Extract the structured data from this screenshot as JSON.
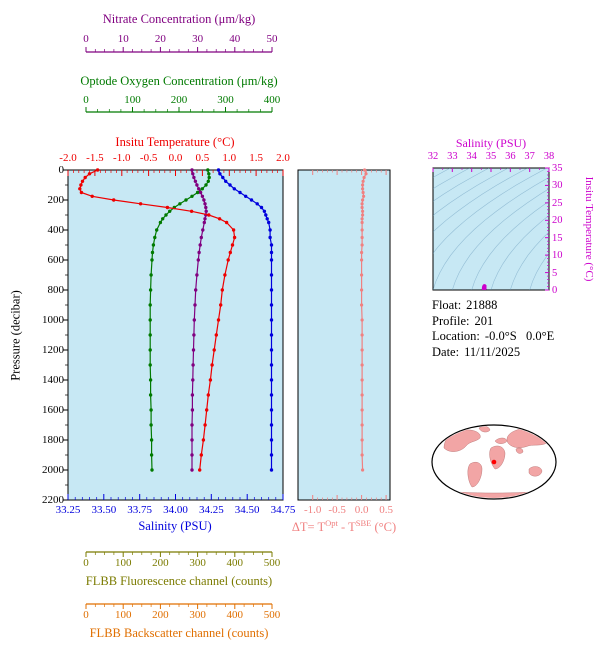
{
  "colors": {
    "nitrate": "#800080",
    "oxygen": "#007A00",
    "temperature": "#EE0000",
    "salinity": "#0000DD",
    "fluorescence": "#7B7B00",
    "backscatter": "#E06F00",
    "delta_t": "#F08080",
    "ts": "#CC00CC",
    "plot_bg": "#C7E8F4",
    "land": "#F2A5A5",
    "marker": "#FF0000"
  },
  "axes": {
    "nitrate": {
      "label": "Nitrate Concentration (μm/kg)",
      "tick_labels": [
        "0",
        "10",
        "20",
        "30",
        "40",
        "50"
      ],
      "range": [
        0,
        50
      ]
    },
    "oxygen": {
      "label": "Optode Oxygen Concentration (μm/kg)",
      "tick_labels": [
        "0",
        "100",
        "200",
        "300",
        "400"
      ],
      "range": [
        0,
        400
      ]
    },
    "temperature": {
      "label": "Insitu Temperature (°C)",
      "tick_labels": [
        "-2.0",
        "-1.5",
        "-1.0",
        "-0.5",
        "0.0",
        "0.5",
        "1.0",
        "1.5",
        "2.0"
      ],
      "range": [
        -2,
        2
      ]
    },
    "pressure": {
      "label": "Pressure (decibar)",
      "tick_labels": [
        "0",
        "200",
        "400",
        "600",
        "800",
        "1000",
        "1200",
        "1400",
        "1600",
        "1800",
        "2000",
        "2200"
      ],
      "range": [
        0,
        2200
      ]
    },
    "salinity": {
      "label": "Salinity (PSU)",
      "tick_labels": [
        "33.25",
        "33.50",
        "33.75",
        "34.00",
        "34.25",
        "34.50",
        "34.75"
      ],
      "range": [
        33.25,
        34.75
      ]
    },
    "delta_t": {
      "label_prefix": "ΔT= T",
      "label_sup1": "Opt",
      "label_mid": " - T",
      "label_sup2": "SBE",
      "label_suffix": " (°C)",
      "tick_labels": [
        "-1.0",
        "-0.5",
        "0.0",
        "0.5"
      ],
      "range": [
        -1.3,
        0.58
      ]
    },
    "fluorescence": {
      "label": "FLBB Fluorescence channel (counts)",
      "tick_labels": [
        "0",
        "100",
        "200",
        "300",
        "400",
        "500"
      ],
      "range": [
        0,
        500
      ]
    },
    "backscatter": {
      "label": "FLBB Backscatter channel (counts)",
      "tick_labels": [
        "0",
        "100",
        "200",
        "300",
        "400",
        "500"
      ],
      "range": [
        0,
        500
      ]
    },
    "ts_salinity": {
      "label": "Salinity (PSU)",
      "tick_labels": [
        "32",
        "33",
        "34",
        "35",
        "36",
        "37",
        "38"
      ],
      "range": [
        32,
        38
      ]
    },
    "ts_temperature": {
      "label": "Insitu Temperature (°C)",
      "tick_labels": [
        "0",
        "5",
        "10",
        "15",
        "20",
        "25",
        "30",
        "35"
      ],
      "range": [
        0,
        35
      ]
    }
  },
  "info": {
    "rows": [
      {
        "label": "Float:",
        "value": "21888"
      },
      {
        "label": "Profile:",
        "value": "201"
      },
      {
        "label": "Location:",
        "value": "-0.0°S   0.0°E"
      },
      {
        "label": "Date:",
        "value": "11/11/2025"
      }
    ]
  },
  "chart_data": [
    {
      "type": "line",
      "title": "Float vertical profiles",
      "ylabel": "Pressure (decibar)",
      "ylim": [
        0,
        2200
      ],
      "y_axis_inverted": true,
      "grid": false,
      "pressure": [
        0,
        25,
        50,
        75,
        100,
        125,
        150,
        175,
        200,
        225,
        250,
        275,
        300,
        325,
        350,
        400,
        450,
        500,
        550,
        600,
        700,
        800,
        900,
        1000,
        1100,
        1200,
        1300,
        1400,
        1500,
        1600,
        1700,
        1800,
        1900,
        2000
      ],
      "series": [
        {
          "name": "Insitu Temperature (°C)",
          "color": "#EE0000",
          "axis_range": [
            -2,
            2
          ],
          "values": [
            -1.45,
            -1.6,
            -1.68,
            -1.73,
            -1.76,
            -1.78,
            -1.75,
            -1.55,
            -1.15,
            -0.65,
            -0.15,
            0.3,
            0.62,
            0.82,
            0.95,
            1.08,
            1.1,
            1.06,
            1.02,
            0.98,
            0.92,
            0.87,
            0.84,
            0.8,
            0.76,
            0.72,
            0.68,
            0.65,
            0.61,
            0.58,
            0.55,
            0.52,
            0.48,
            0.45
          ]
        },
        {
          "name": "Salinity (PSU)",
          "color": "#0000DD",
          "axis_range": [
            33.25,
            34.75
          ],
          "values": [
            34.3,
            34.31,
            34.33,
            34.35,
            34.38,
            34.41,
            34.45,
            34.49,
            34.53,
            34.57,
            34.6,
            34.62,
            34.63,
            34.64,
            34.65,
            34.66,
            34.66,
            34.67,
            34.67,
            34.67,
            34.67,
            34.67,
            34.67,
            34.67,
            34.67,
            34.67,
            34.67,
            34.67,
            34.67,
            34.67,
            34.67,
            34.67,
            34.67,
            34.67
          ]
        },
        {
          "name": "Optode Oxygen Concentration (μm/kg)",
          "color": "#007A00",
          "axis_range": [
            0,
            400
          ],
          "values": [
            262,
            264,
            265,
            263,
            258,
            250,
            240,
            228,
            215,
            202,
            190,
            180,
            172,
            165,
            160,
            152,
            148,
            145,
            143,
            142,
            140,
            139,
            138,
            138,
            138,
            138,
            138,
            139,
            139,
            140,
            140,
            141,
            141,
            142
          ]
        },
        {
          "name": "Nitrate Concentration (μm/kg)",
          "color": "#800080",
          "axis_range": [
            0,
            50
          ],
          "values": [
            28.5,
            28.7,
            29.0,
            29.4,
            29.8,
            30.3,
            30.8,
            31.3,
            31.7,
            32.0,
            32.2,
            32.3,
            32.2,
            32.0,
            31.8,
            31.4,
            31.0,
            30.7,
            30.4,
            30.2,
            29.8,
            29.5,
            29.3,
            29.1,
            29.0,
            28.9,
            28.8,
            28.7,
            28.6,
            28.6,
            28.5,
            28.5,
            28.5,
            28.5
          ]
        }
      ]
    },
    {
      "type": "line",
      "title": "ΔT= T(Opt) - T(SBE) (°C)",
      "xlim": [
        -1.3,
        0.58
      ],
      "xticks": [
        -1.0,
        -0.5,
        0.0,
        0.5
      ],
      "ylabel": "Pressure (decibar)",
      "ylim": [
        0,
        2200
      ],
      "y_axis_inverted": true,
      "pressure": [
        0,
        25,
        50,
        75,
        100,
        125,
        150,
        175,
        200,
        225,
        250,
        275,
        300,
        325,
        350,
        400,
        450,
        500,
        550,
        600,
        700,
        800,
        900,
        1000,
        1100,
        1200,
        1300,
        1400,
        1500,
        1600,
        1700,
        1800,
        1900,
        2000
      ],
      "values": [
        0.06,
        0.09,
        0.05,
        0.03,
        0.02,
        0.02,
        0.03,
        0.04,
        0.02,
        0.01,
        0.01,
        0.02,
        0.02,
        0.01,
        0.01,
        0.01,
        0.01,
        0.01,
        0.0,
        0.0,
        0.0,
        0.0,
        0.0,
        0.01,
        0.01,
        0.01,
        0.01,
        0.01,
        0.01,
        0.01,
        0.01,
        0.01,
        0.01,
        0.02
      ]
    },
    {
      "type": "scatter",
      "title": "T-S diagram",
      "xlabel": "Salinity (PSU)",
      "xlim": [
        32,
        38
      ],
      "ylabel": "Insitu Temperature (°C)",
      "ylim": [
        0,
        35
      ],
      "background": "isopycnal contour lines",
      "points": [
        [
          34.62,
          0.3
        ],
        [
          34.63,
          0.62
        ],
        [
          34.64,
          0.82
        ],
        [
          34.65,
          0.95
        ],
        [
          34.66,
          1.08
        ],
        [
          34.66,
          1.1
        ],
        [
          34.67,
          1.06
        ],
        [
          34.67,
          1.02
        ],
        [
          34.67,
          0.98
        ],
        [
          34.67,
          0.92
        ],
        [
          34.67,
          0.87
        ],
        [
          34.67,
          0.84
        ],
        [
          34.67,
          0.8
        ],
        [
          34.67,
          0.76
        ],
        [
          34.67,
          0.72
        ],
        [
          34.67,
          0.68
        ],
        [
          34.67,
          0.65
        ],
        [
          34.67,
          0.61
        ],
        [
          34.67,
          0.58
        ],
        [
          34.67,
          0.55
        ],
        [
          34.67,
          0.52
        ],
        [
          34.67,
          0.48
        ],
        [
          34.67,
          0.45
        ]
      ]
    }
  ]
}
